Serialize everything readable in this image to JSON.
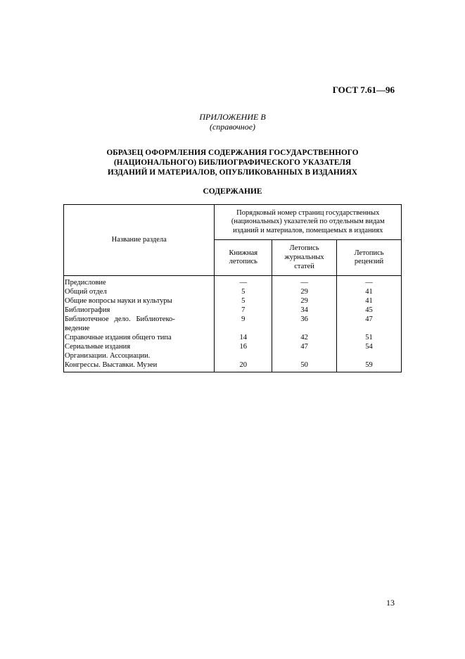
{
  "doc_code": "ГОСТ 7.61—96",
  "appendix": {
    "line1": "ПРИЛОЖЕНИЕ В",
    "line2": "(справочное)"
  },
  "title": {
    "l1": "ОБРАЗЕЦ ОФОРМЛЕНИЯ СОДЕРЖАНИЯ ГОСУДАРСТВЕННОГО",
    "l2": "(НАЦИОНАЛЬНОГО) БИБЛИОГРАФИЧЕСКОГО УКАЗАТЕЛЯ",
    "l3": "ИЗДАНИЙ И МАТЕРИАЛОВ, ОПУБЛИКОВАННЫХ В ИЗДАНИЯХ"
  },
  "contents_label": "СОДЕРЖАНИЕ",
  "table": {
    "head": {
      "section_name": "Название раздела",
      "supercol": "Порядковый номер страниц государственных (национальных) указателей по отдельным видам изданий и материалов, помещаемых в изданиях",
      "c1": "Книжная летопись",
      "c2": "Летопись журнальных статей",
      "c3": "Летопись рецензий"
    },
    "rows": [
      {
        "name": "Предисловие",
        "c1": "—",
        "c2": "—",
        "c3": "—"
      },
      {
        "name": "Общий отдел",
        "c1": "5",
        "c2": "29",
        "c3": "41"
      },
      {
        "name": "Общие вопросы науки и культуры",
        "c1": "5",
        "c2": "29",
        "c3": "41"
      },
      {
        "name": "Библиография",
        "c1": "7",
        "c2": "34",
        "c3": "45"
      },
      {
        "name": "Библиотечное   дело.   Библиотеко-",
        "c1": "9",
        "c2": "36",
        "c3": "47"
      },
      {
        "name": "ведение",
        "c1": "",
        "c2": "",
        "c3": ""
      },
      {
        "name": "Справочные издания общего типа",
        "c1": "14",
        "c2": "42",
        "c3": "51"
      },
      {
        "name": "Сериальные издания",
        "c1": "16",
        "c2": "47",
        "c3": "54"
      },
      {
        "name": "Организации. Ассоциации.",
        "c1": "",
        "c2": "",
        "c3": ""
      },
      {
        "name": "Конгрессы. Выставки. Музеи",
        "c1": "20",
        "c2": "50",
        "c3": "59"
      }
    ],
    "col_widths": {
      "name": 210,
      "c1": 80,
      "c2": 90,
      "c3": 90
    }
  },
  "page_number": "13",
  "colors": {
    "text": "#000000",
    "bg": "#ffffff",
    "border": "#000000"
  }
}
